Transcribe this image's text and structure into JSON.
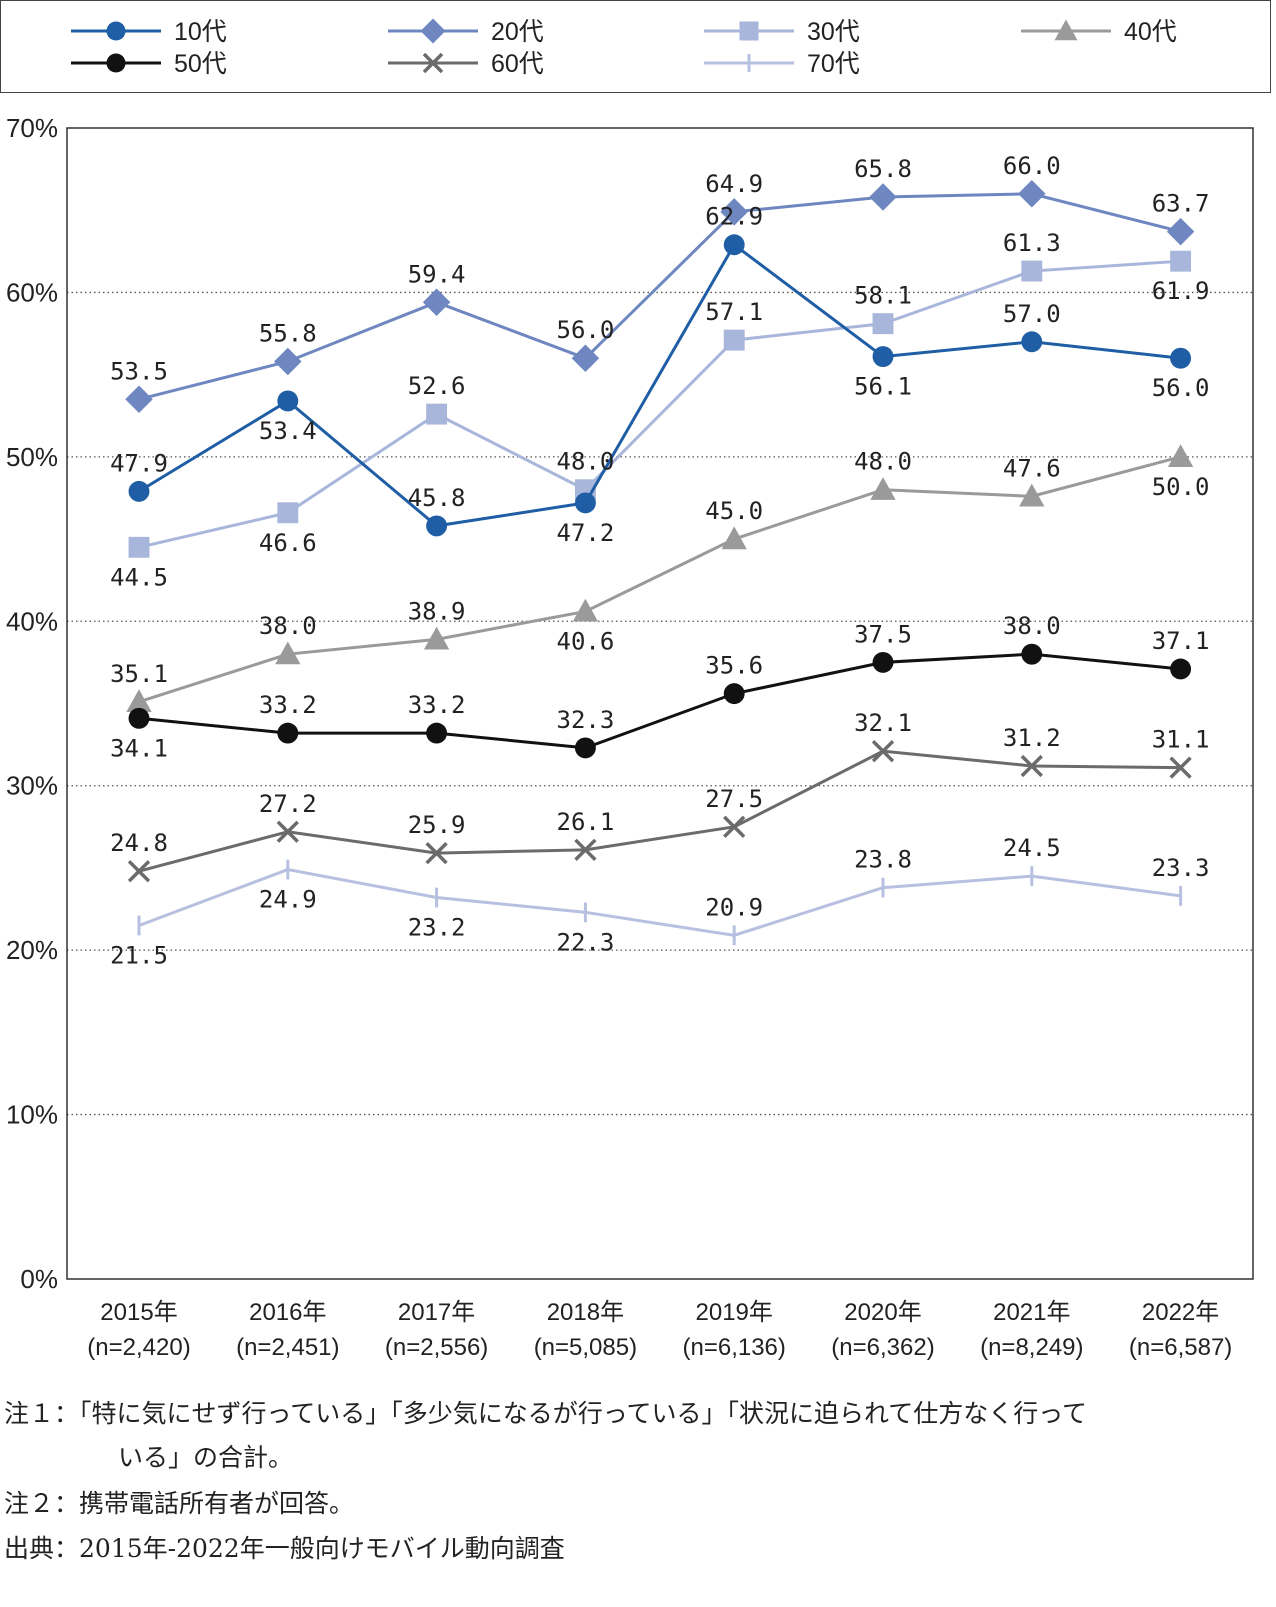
{
  "chart_data": {
    "type": "line",
    "xlabel": "",
    "ylabel": "",
    "ylim": [
      0,
      70
    ],
    "yticks": [
      "0%",
      "10%",
      "20%",
      "30%",
      "40%",
      "50%",
      "60%",
      "70%"
    ],
    "grid": "horizontal dotted",
    "legend_position": "top",
    "categories": [
      [
        "2015年",
        "(n=2,420)"
      ],
      [
        "2016年",
        "(n=2,451)"
      ],
      [
        "2017年",
        "(n=2,556)"
      ],
      [
        "2018年",
        "(n=5,085)"
      ],
      [
        "2019年",
        "(n=6,136)"
      ],
      [
        "2020年",
        "(n=6,362)"
      ],
      [
        "2021年",
        "(n=8,249)"
      ],
      [
        "2022年",
        "(n=6,587)"
      ]
    ],
    "series": [
      {
        "name": "10代",
        "color": "#1f5ea5",
        "marker": "circle",
        "values": [
          47.9,
          53.4,
          45.8,
          47.2,
          62.9,
          56.1,
          57.0,
          56.0
        ],
        "labels": [
          "47.9",
          "53.4",
          "45.8",
          "47.2",
          "62.9",
          "56.1",
          "57.0",
          "56.0"
        ]
      },
      {
        "name": "20代",
        "color": "#6f87c0",
        "marker": "diamond",
        "values": [
          53.5,
          55.8,
          59.4,
          56.0,
          64.9,
          65.8,
          66.0,
          63.7
        ],
        "labels": [
          "53.5",
          "55.8",
          "59.4",
          "56.0",
          "64.9",
          "65.8",
          "66.0",
          "63.7"
        ]
      },
      {
        "name": "30代",
        "color": "#a9b6db",
        "marker": "square",
        "values": [
          44.5,
          46.6,
          52.6,
          48.0,
          57.1,
          58.1,
          61.3,
          61.9
        ],
        "labels": [
          "44.5",
          "46.6",
          "52.6",
          "48.0",
          "57.1",
          "58.1",
          "61.3",
          "61.9"
        ]
      },
      {
        "name": "40代",
        "color": "#9a9a9a",
        "marker": "triangle",
        "values": [
          35.1,
          38.0,
          38.9,
          40.6,
          45.0,
          48.0,
          47.6,
          50.0
        ],
        "labels": [
          "35.1",
          "38.0",
          "38.9",
          "40.6",
          "45.0",
          "48.0",
          "47.6",
          "50.0"
        ]
      },
      {
        "name": "50代",
        "color": "#111111",
        "marker": "circle",
        "values": [
          34.1,
          33.2,
          33.2,
          32.3,
          35.6,
          37.5,
          38.0,
          37.1
        ],
        "labels": [
          "34.1",
          "33.2",
          "33.2",
          "32.3",
          "35.6",
          "37.5",
          "38.0",
          "37.1"
        ]
      },
      {
        "name": "60代",
        "color": "#6b6b6b",
        "marker": "x",
        "values": [
          24.8,
          27.2,
          25.9,
          26.1,
          27.5,
          32.1,
          31.2,
          31.1
        ],
        "labels": [
          "24.8",
          "27.2",
          "25.9",
          "26.1",
          "27.5",
          "32.1",
          "31.2",
          "31.1"
        ]
      },
      {
        "name": "70代",
        "color": "#b7c0e0",
        "marker": "plus",
        "values": [
          21.5,
          24.9,
          23.2,
          22.3,
          20.9,
          23.8,
          24.5,
          23.3
        ],
        "labels": [
          "21.5",
          "24.9",
          "23.2",
          "22.3",
          "20.9",
          "23.8",
          "24.5",
          "23.3"
        ]
      }
    ]
  },
  "notes": {
    "note1_line1": "注１：「特に気にせず行っている」「多少気になるが行っている」「状況に迫られて仕方なく行って",
    "note1_line2": "いる」の合計。",
    "note2": "注２：携帯電話所有者が回答。",
    "source": "出典：2015年-2022年一般向けモバイル動向調査"
  }
}
